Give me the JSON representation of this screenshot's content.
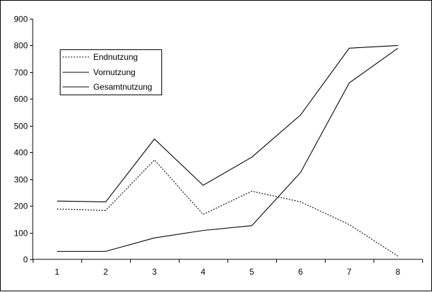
{
  "chart_data": {
    "type": "line",
    "x": [
      1,
      2,
      3,
      4,
      5,
      6,
      7,
      8
    ],
    "ylim": [
      0,
      900
    ],
    "yticks": [
      0,
      100,
      200,
      300,
      400,
      500,
      600,
      700,
      800,
      900
    ],
    "grid": false,
    "legend_position": "top-left",
    "series": [
      {
        "name": "Endnutzung",
        "style": "dotted",
        "color": "#000000",
        "values": [
          188,
          183,
          372,
          168,
          255,
          215,
          130,
          12
        ]
      },
      {
        "name": "Vornutzung",
        "style": "solid",
        "color": "#000000",
        "values": [
          30,
          30,
          80,
          108,
          126,
          325,
          660,
          790
        ]
      },
      {
        "name": "Gesamtnutzung",
        "style": "solid",
        "color": "#000000",
        "values": [
          218,
          215,
          450,
          277,
          382,
          540,
          790,
          800
        ]
      }
    ]
  }
}
